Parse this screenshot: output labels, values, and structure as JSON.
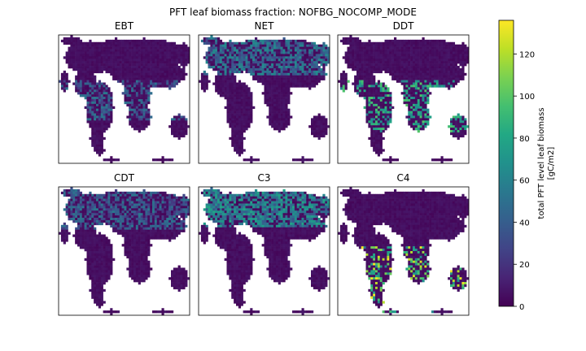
{
  "chart_data": {
    "type": "heatmap",
    "title": "PFT leaf biomass fraction: NOFBG_NOCOMP_MODE",
    "panels": [
      {
        "name": "EBT"
      },
      {
        "name": "NET"
      },
      {
        "name": "DDT"
      },
      {
        "name": "CDT"
      },
      {
        "name": "C3"
      },
      {
        "name": "C4"
      }
    ],
    "colorbar": {
      "label": "total PFT level leaf biomass\n[gC/m2]",
      "label_lines": [
        "total PFT level leaf biomass",
        "[gC/m2]"
      ],
      "ticks": [
        0,
        20,
        40,
        60,
        80,
        100,
        120
      ],
      "range": [
        0,
        136
      ],
      "colormap": "viridis"
    },
    "grid": false,
    "axes_ticks": false
  }
}
